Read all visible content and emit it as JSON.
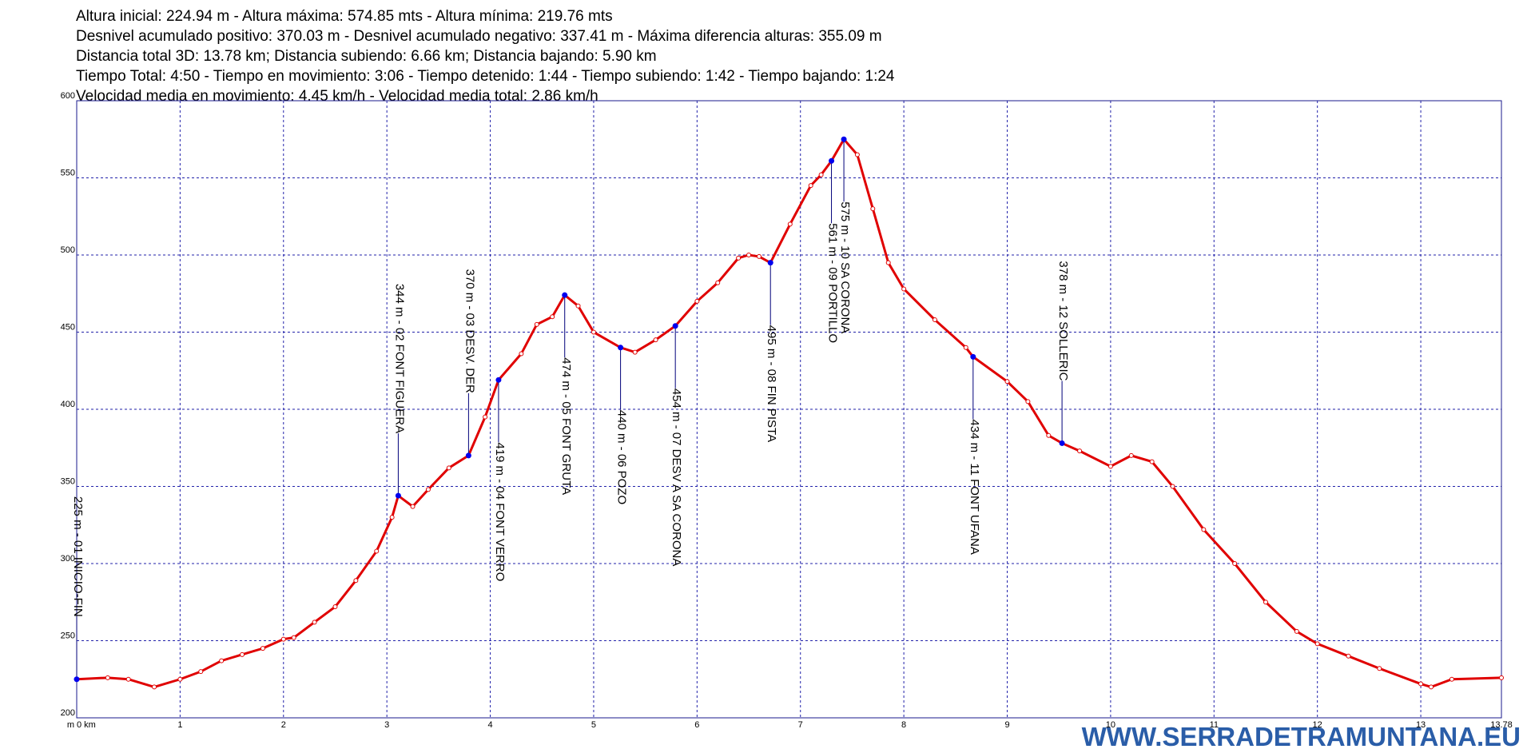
{
  "chart_data": {
    "type": "line",
    "header": [
      "Altura inicial: 224.94 m - Altura máxima: 574.85 mts - Altura mínima: 219.76 mts",
      "Desnivel acumulado positivo: 370.03 m  - Desnivel acumulado negativo: 337.41 m - Máxima diferencia alturas: 355.09 m",
      "Distancia total 3D: 13.78 km; Distancia subiendo: 6.66 km; Distancia bajando: 5.90 km",
      "Tiempo Total: 4:50 - Tiempo en movimiento: 3:06 - Tiempo detenido: 1:44 - Tiempo subiendo: 1:42 - Tiempo bajando: 1:24",
      "Velocidad media en movimiento: 4.45 km/h - Velocidad media total: 2.86 km/h"
    ],
    "y_label": "m",
    "watermark": "WWW.SERRADETRAMUNTANA.EU",
    "xlim": [
      0,
      13.78
    ],
    "xticks": [
      {
        "value": 0,
        "label": "0 km"
      },
      1,
      2,
      3,
      4,
      5,
      6,
      7,
      8,
      9,
      10,
      11,
      12,
      13,
      13.78
    ],
    "ylim": [
      200,
      600
    ],
    "yticks": [
      200,
      250,
      300,
      350,
      400,
      450,
      500,
      550,
      600
    ],
    "grid": true,
    "series": [
      {
        "color": "#e00000",
        "x": [
          0,
          0.3,
          0.5,
          0.75,
          1.0,
          1.2,
          1.4,
          1.6,
          1.8,
          2.0,
          2.1,
          2.3,
          2.5,
          2.7,
          2.9,
          3.05,
          3.11,
          3.25,
          3.4,
          3.6,
          3.79,
          3.95,
          4.08,
          4.3,
          4.45,
          4.6,
          4.72,
          4.85,
          5.0,
          5.26,
          5.4,
          5.6,
          5.79,
          6.0,
          6.2,
          6.4,
          6.5,
          6.6,
          6.71,
          6.9,
          7.1,
          7.2,
          7.3,
          7.42,
          7.55,
          7.7,
          7.85,
          8.0,
          8.3,
          8.6,
          8.67,
          9.0,
          9.2,
          9.4,
          9.53,
          9.7,
          10.0,
          10.2,
          10.4,
          10.6,
          10.9,
          11.2,
          11.5,
          11.8,
          12.0,
          12.3,
          12.6,
          13.0,
          13.1,
          13.3,
          13.78
        ],
        "values": [
          225,
          226,
          225,
          220,
          225,
          230,
          237,
          241,
          245,
          251,
          252,
          262,
          272,
          289,
          308,
          330,
          344,
          337,
          348,
          362,
          370,
          395,
          419,
          436,
          455,
          460,
          474,
          467,
          450,
          440,
          437,
          445,
          454,
          470,
          482,
          498,
          500,
          499,
          495,
          520,
          545,
          552,
          561,
          575,
          565,
          530,
          495,
          478,
          458,
          440,
          434,
          418,
          405,
          383,
          378,
          373,
          363,
          370,
          366,
          350,
          322,
          300,
          275,
          256,
          248,
          240,
          232,
          222,
          220,
          225,
          226
        ]
      }
    ],
    "annotations": [
      {
        "x": 0,
        "y": 225,
        "label": "225 m - 01 INICIO-FIN"
      },
      {
        "x": 3.11,
        "y": 344,
        "label": "344 m - 02 FONT FIGUERA"
      },
      {
        "x": 3.79,
        "y": 370,
        "label": "370 m - 03 DESV. DER"
      },
      {
        "x": 4.08,
        "y": 419,
        "label": "419 m - 04 FONT VERRO"
      },
      {
        "x": 4.72,
        "y": 474,
        "label": "474 m - 05 FONT GRUTA"
      },
      {
        "x": 5.26,
        "y": 440,
        "label": "440 m - 06 POZO"
      },
      {
        "x": 5.79,
        "y": 454,
        "label": "454 m - 07 DESV A SA CORONA"
      },
      {
        "x": 6.71,
        "y": 495,
        "label": "495 m - 08 FIN PISTA"
      },
      {
        "x": 7.3,
        "y": 561,
        "label": "561 m - 09 PORTILLO"
      },
      {
        "x": 7.42,
        "y": 575,
        "label": "575 m - 10 SA CORONA"
      },
      {
        "x": 8.67,
        "y": 434,
        "label": "434 m - 11 FONT UFANA"
      },
      {
        "x": 9.53,
        "y": 378,
        "label": "378 m - 12 SOLLERIC"
      }
    ]
  }
}
